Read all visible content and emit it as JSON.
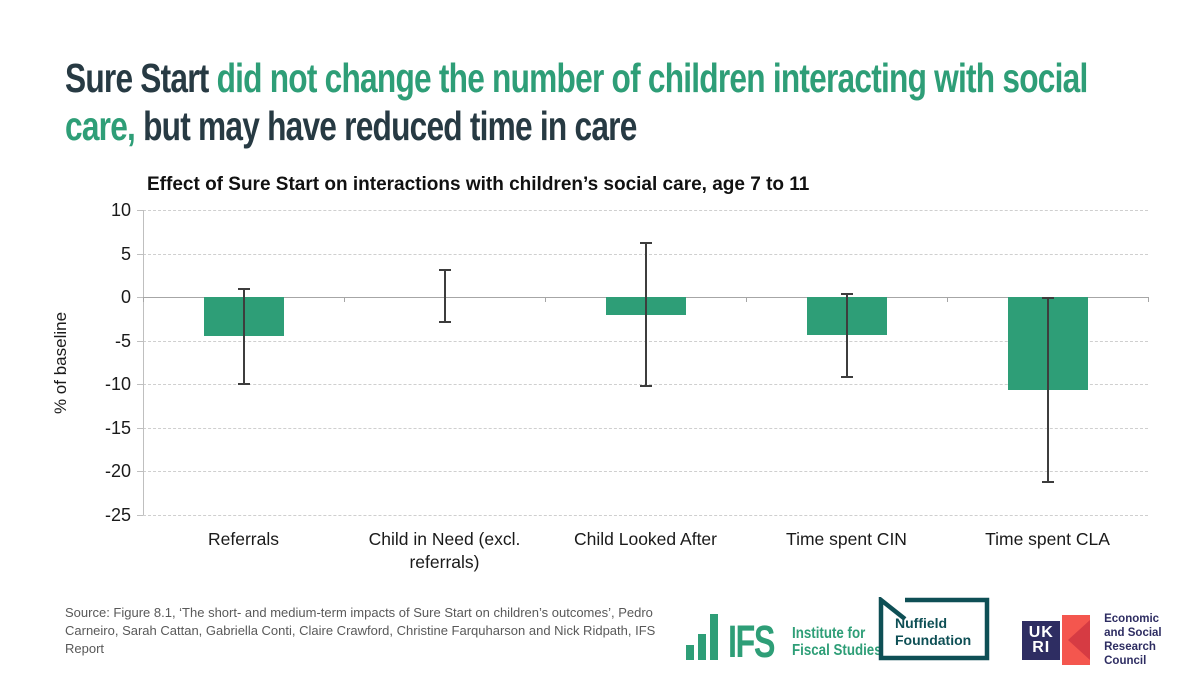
{
  "headline": {
    "part1": "Sure Start ",
    "part2": "did not change the number of children interacting with social care,",
    "part3": " but may have reduced time in care"
  },
  "chart_data": {
    "type": "bar",
    "title": "Effect of Sure Start on interactions with children’s social care, age 7 to 11",
    "xlabel": "",
    "ylabel": "% of baseline",
    "ylim": [
      -25,
      10
    ],
    "yticks": [
      10,
      5,
      0,
      -5,
      -10,
      -15,
      -20,
      -25
    ],
    "grid": "horizontal dashed, solid zero line",
    "legend": "none",
    "bar_color": "#2E9E77",
    "categories": [
      "Referrals",
      "Child in Need (excl. referrals)",
      "Child Looked After",
      "Time spent CIN",
      "Time spent CLA"
    ],
    "values": [
      -4.5,
      0,
      -2.1,
      -4.4,
      -10.6
    ],
    "error_high": [
      0.9,
      3.1,
      6.2,
      0.4,
      -0.1
    ],
    "error_low": [
      -10.0,
      -2.8,
      -10.2,
      -9.2,
      -21.2
    ]
  },
  "footer": {
    "source": "Source: Figure 8.1, ‘The short- and medium-term impacts of Sure Start on children’s outcomes’, Pedro Carneiro, Sarah Cattan, Gabriella Conti, Claire Crawford, Christine Farquharson and Nick Ridpath, IFS Report"
  },
  "logos": {
    "ifs": {
      "acronym": "IFS",
      "name_line1": "Institute for",
      "name_line2": "Fiscal Studies"
    },
    "nuffield": {
      "line1": "Nuffield",
      "line2": "Foundation"
    },
    "ukri": {
      "letters_top": "UK",
      "letters_bottom": "RI",
      "line1": "Economic",
      "line2": "and Social",
      "line3": "Research Council"
    }
  },
  "colors": {
    "green": "#2E9E77",
    "dark_slate": "#273A43",
    "nuffield_teal": "#0E4F55",
    "ukri_navy": "#2E2D62",
    "ukri_coral": "#F4564E",
    "ukri_coral_dark": "#D63B43",
    "source_gray": "#595959"
  }
}
